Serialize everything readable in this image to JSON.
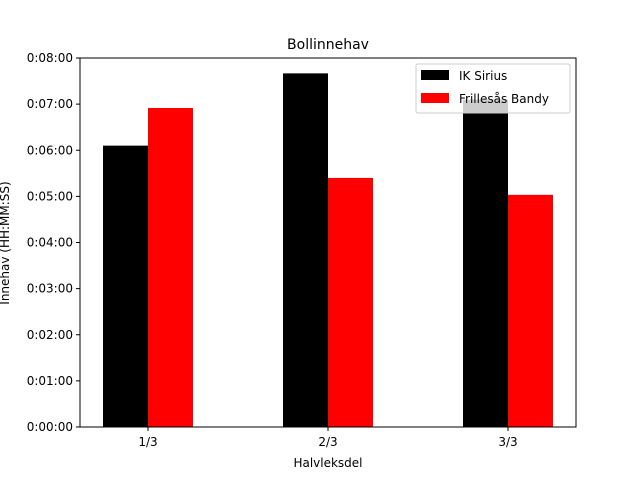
{
  "chart_data": {
    "type": "bar",
    "title": "Bollinnehav",
    "xlabel": "Halvleksdel",
    "ylabel": "Innehav (HH:MM:SS)",
    "categories": [
      "1/3",
      "2/3",
      "3/3"
    ],
    "series": [
      {
        "name": "IK Sirius",
        "color": "#000000",
        "values": [
          366,
          460,
          426
        ]
      },
      {
        "name": "Frillesås Bandy",
        "color": "#ff0000",
        "values": [
          415,
          324,
          302
        ]
      }
    ],
    "ylim": [
      0,
      480
    ],
    "yticks": [
      0,
      60,
      120,
      180,
      240,
      300,
      360,
      420,
      480
    ],
    "ytick_labels": [
      "0:00:00",
      "0:01:00",
      "0:02:00",
      "0:03:00",
      "0:04:00",
      "0:05:00",
      "0:06:00",
      "0:07:00",
      "0:08:00"
    ],
    "legend_position": "top-right",
    "grid": false
  }
}
